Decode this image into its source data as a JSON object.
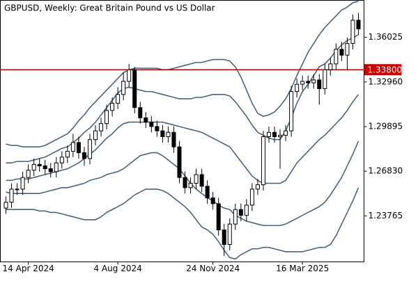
{
  "chart_data": {
    "type": "candlestick",
    "title": "GBPUSD, Weekly:  Great Britain Pound vs US Dollar",
    "categories": [
      null,
      null,
      null,
      null,
      "14 Apr 2024",
      null,
      null,
      null,
      null,
      null,
      null,
      null,
      null,
      null,
      null,
      null,
      null,
      null,
      null,
      null,
      "4 Aug 2024",
      null,
      null,
      null,
      null,
      null,
      null,
      null,
      null,
      null,
      null,
      null,
      null,
      null,
      null,
      null,
      null,
      "24 Nov 2024",
      null,
      null,
      null,
      null,
      null,
      null,
      null,
      null,
      null,
      null,
      null,
      null,
      null,
      null,
      null,
      "16 Mar 2025",
      null,
      null,
      null,
      null,
      null,
      null,
      null,
      null,
      null,
      null
    ],
    "open": [
      1.243,
      1.247,
      1.256,
      1.256,
      1.264,
      1.269,
      1.273,
      1.272,
      1.27,
      1.268,
      1.274,
      1.278,
      1.282,
      1.288,
      1.281,
      1.277,
      1.29,
      1.296,
      1.301,
      1.31,
      1.315,
      1.321,
      1.33,
      1.338,
      1.312,
      1.305,
      1.302,
      1.299,
      1.296,
      1.292,
      1.295,
      1.285,
      1.264,
      1.257,
      1.26,
      1.266,
      1.258,
      1.25,
      1.246,
      1.228,
      1.218,
      1.232,
      1.242,
      1.238,
      1.245,
      1.256,
      1.259,
      1.292,
      1.295,
      1.292,
      1.293,
      1.296,
      1.323,
      1.328,
      1.33,
      1.329,
      1.331,
      1.325,
      1.338,
      1.342,
      1.352,
      1.348,
      1.356,
      1.372
    ],
    "high": [
      1.251,
      1.26,
      1.26,
      1.268,
      1.273,
      1.277,
      1.277,
      1.276,
      1.274,
      1.278,
      1.282,
      1.286,
      1.294,
      1.292,
      1.285,
      1.294,
      1.3,
      1.305,
      1.314,
      1.319,
      1.326,
      1.336,
      1.342,
      1.34,
      1.316,
      1.309,
      1.306,
      1.303,
      1.3,
      1.299,
      1.299,
      1.289,
      1.268,
      1.264,
      1.27,
      1.27,
      1.262,
      1.254,
      1.25,
      1.232,
      1.236,
      1.246,
      1.246,
      1.249,
      1.26,
      1.263,
      1.296,
      1.299,
      1.299,
      1.297,
      1.3,
      1.327,
      1.332,
      1.334,
      1.334,
      1.335,
      1.335,
      1.342,
      1.346,
      1.356,
      1.357,
      1.36,
      1.376,
      1.377
    ],
    "low": [
      1.239,
      1.243,
      1.252,
      1.252,
      1.26,
      1.265,
      1.268,
      1.266,
      1.264,
      1.264,
      1.27,
      1.274,
      1.278,
      1.277,
      1.272,
      1.273,
      1.286,
      1.292,
      1.297,
      1.306,
      1.311,
      1.317,
      1.326,
      1.308,
      1.301,
      1.298,
      1.295,
      1.292,
      1.288,
      1.288,
      1.281,
      1.26,
      1.253,
      1.253,
      1.256,
      1.254,
      1.246,
      1.242,
      1.224,
      1.21,
      1.214,
      1.228,
      1.234,
      1.234,
      1.241,
      1.252,
      1.255,
      1.288,
      1.288,
      1.27,
      1.289,
      1.292,
      1.319,
      1.324,
      1.325,
      1.325,
      1.314,
      1.321,
      1.334,
      1.338,
      1.344,
      1.338,
      1.352,
      1.362
    ],
    "close": [
      1.247,
      1.256,
      1.256,
      1.264,
      1.269,
      1.273,
      1.272,
      1.27,
      1.268,
      1.274,
      1.278,
      1.282,
      1.288,
      1.281,
      1.277,
      1.29,
      1.296,
      1.301,
      1.31,
      1.315,
      1.321,
      1.33,
      1.338,
      1.312,
      1.305,
      1.302,
      1.299,
      1.296,
      1.292,
      1.295,
      1.285,
      1.264,
      1.257,
      1.26,
      1.266,
      1.258,
      1.25,
      1.246,
      1.228,
      1.218,
      1.232,
      1.242,
      1.238,
      1.245,
      1.256,
      1.259,
      1.292,
      1.295,
      1.292,
      1.293,
      1.296,
      1.323,
      1.328,
      1.33,
      1.329,
      1.331,
      1.325,
      1.338,
      1.342,
      1.352,
      1.348,
      1.356,
      1.372,
      1.366
    ],
    "up_color": "#ffffff",
    "down_color": "#000000",
    "bands": [
      {
        "color": "#4d6478",
        "values": [
          1.287,
          1.286,
          1.286,
          1.285,
          1.285,
          1.285,
          1.285,
          1.286,
          1.288,
          1.29,
          1.292,
          1.294,
          1.298,
          1.303,
          1.307,
          1.312,
          1.316,
          1.32,
          1.324,
          1.328,
          1.332,
          1.336,
          1.338,
          1.339,
          1.339,
          1.339,
          1.339,
          1.339,
          1.338,
          1.338,
          1.339,
          1.34,
          1.341,
          1.342,
          1.343,
          1.343,
          1.344,
          1.345,
          1.345,
          1.345,
          1.344,
          1.34,
          1.333,
          1.324,
          1.315,
          1.308,
          1.306,
          1.307,
          1.309,
          1.313,
          1.318,
          1.325,
          1.334,
          1.342,
          1.35,
          1.356,
          1.362,
          1.367,
          1.371,
          1.375,
          1.379,
          1.381,
          1.384,
          1.385
        ]
      },
      {
        "color": "#4d6478",
        "values": [
          1.274,
          1.274,
          1.275,
          1.275,
          1.275,
          1.276,
          1.277,
          1.278,
          1.28,
          1.282,
          1.284,
          1.285,
          1.288,
          1.291,
          1.295,
          1.298,
          1.302,
          1.307,
          1.312,
          1.317,
          1.322,
          1.325,
          1.326,
          1.325,
          1.324,
          1.323,
          1.323,
          1.322,
          1.321,
          1.32,
          1.319,
          1.318,
          1.318,
          1.318,
          1.319,
          1.319,
          1.32,
          1.321,
          1.321,
          1.321,
          1.32,
          1.316,
          1.311,
          1.306,
          1.3,
          1.295,
          1.293,
          1.291,
          1.29,
          1.29,
          1.296,
          1.305,
          1.315,
          1.323,
          1.328,
          1.334,
          1.34,
          1.342,
          1.346,
          1.351,
          1.355,
          1.358,
          1.36,
          1.362
        ]
      },
      {
        "color": "#4d6478",
        "values": [
          1.262,
          1.262,
          1.263,
          1.263,
          1.263,
          1.264,
          1.265,
          1.266,
          1.267,
          1.268,
          1.269,
          1.27,
          1.272,
          1.274,
          1.277,
          1.28,
          1.283,
          1.287,
          1.291,
          1.294,
          1.298,
          1.301,
          1.302,
          1.302,
          1.302,
          1.302,
          1.302,
          1.302,
          1.302,
          1.301,
          1.3,
          1.299,
          1.298,
          1.297,
          1.296,
          1.295,
          1.293,
          1.291,
          1.289,
          1.287,
          1.285,
          1.28,
          1.275,
          1.27,
          1.265,
          1.262,
          1.26,
          1.26,
          1.26,
          1.26,
          1.262,
          1.268,
          1.274,
          1.278,
          1.282,
          1.286,
          1.29,
          1.293,
          1.297,
          1.301,
          1.305,
          1.31,
          1.316,
          1.321
        ]
      },
      {
        "color": "#4d6478",
        "values": [
          1.254,
          1.253,
          1.253,
          1.253,
          1.253,
          1.253,
          1.253,
          1.254,
          1.255,
          1.256,
          1.257,
          1.257,
          1.258,
          1.259,
          1.26,
          1.262,
          1.263,
          1.264,
          1.266,
          1.267,
          1.268,
          1.27,
          1.273,
          1.276,
          1.279,
          1.28,
          1.281,
          1.281,
          1.279,
          1.276,
          1.273,
          1.27,
          1.265,
          1.26,
          1.256,
          1.253,
          1.25,
          1.248,
          1.245,
          1.243,
          1.242,
          1.238,
          1.236,
          1.234,
          1.233,
          1.232,
          1.231,
          1.231,
          1.231,
          1.231,
          1.232,
          1.234,
          1.236,
          1.238,
          1.24,
          1.242,
          1.244,
          1.247,
          1.252,
          1.258,
          1.264,
          1.272,
          1.28,
          1.289
        ]
      },
      {
        "color": "#4d6478",
        "values": [
          1.242,
          1.242,
          1.242,
          1.242,
          1.242,
          1.242,
          1.241,
          1.241,
          1.24,
          1.24,
          1.239,
          1.238,
          1.237,
          1.236,
          1.235,
          1.235,
          1.235,
          1.237,
          1.24,
          1.242,
          1.244,
          1.246,
          1.249,
          1.252,
          1.254,
          1.256,
          1.256,
          1.256,
          1.255,
          1.253,
          1.25,
          1.247,
          1.244,
          1.24,
          1.235,
          1.23,
          1.228,
          1.225,
          1.22,
          1.214,
          1.209,
          1.208,
          1.211,
          1.213,
          1.215,
          1.215,
          1.216,
          1.216,
          1.215,
          1.214,
          1.213,
          1.213,
          1.213,
          1.213,
          1.214,
          1.215,
          1.216,
          1.216,
          1.218,
          1.224,
          1.232,
          1.24,
          1.248,
          1.257
        ]
      }
    ],
    "hline": {
      "value": 1.338,
      "label": "1.33800",
      "color": "#cc0000"
    },
    "ylim": [
      1.20605,
      1.38563
    ],
    "yticks": [
      1.36025,
      {
        "value": 1.3296,
        "label": "1.32960"
      },
      1.29895,
      {
        "value": 1.2683,
        "label": "1.26830"
      },
      1.23765
    ]
  }
}
